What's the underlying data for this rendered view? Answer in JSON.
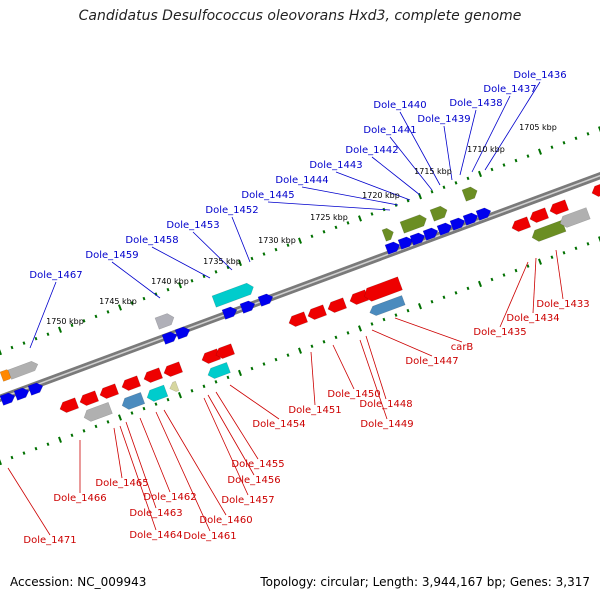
{
  "title": "Candidatus Desulfococcus oleovorans Hxd3, complete genome",
  "footer": {
    "accession": "Accession: NC_009943",
    "summary": "Topology: circular; Length: 3,944,167 bp; Genes: 3,317"
  },
  "colors": {
    "forward_label": "#0000cc",
    "reverse_label": "#cc0000",
    "backbone": "#808080",
    "tick_green": "#007000"
  },
  "ticks": [
    {
      "label": "1705 kbp"
    },
    {
      "label": "1710 kbp"
    },
    {
      "label": "1715 kbp"
    },
    {
      "label": "1720 kbp"
    },
    {
      "label": "1725 kbp"
    },
    {
      "label": "1730 kbp"
    },
    {
      "label": "1735 kbp"
    },
    {
      "label": "1740 kbp"
    },
    {
      "label": "1745 kbp"
    },
    {
      "label": "1750 kbp"
    }
  ],
  "forward_labels": [
    "Dole_1436",
    "Dole_1437",
    "Dole_1438",
    "Dole_1439",
    "Dole_1440",
    "Dole_1441",
    "Dole_1442",
    "Dole_1443",
    "Dole_1444",
    "Dole_1445",
    "Dole_1452",
    "Dole_1453",
    "Dole_1458",
    "Dole_1459",
    "Dole_1467"
  ],
  "reverse_labels": [
    "Dole_1433",
    "Dole_1434",
    "Dole_1435",
    "carB",
    "Dole_1447",
    "Dole_1448",
    "Dole_1449",
    "Dole_1450",
    "Dole_1451",
    "Dole_1454",
    "Dole_1455",
    "Dole_1456",
    "Dole_1457",
    "Dole_1460",
    "Dole_1461",
    "Dole_1462",
    "Dole_1463",
    "Dole_1464",
    "Dole_1465",
    "Dole_1466",
    "Dole_1471"
  ]
}
